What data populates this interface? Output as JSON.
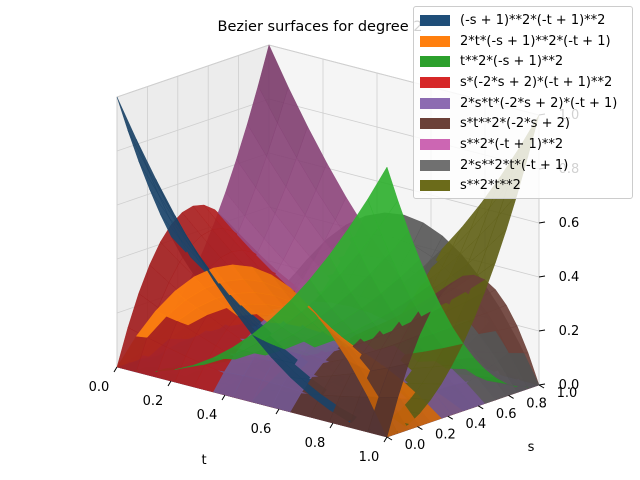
{
  "chart_data": {
    "type": "surface3d",
    "title": "Bezier surfaces for degree 2",
    "xlabel": "t",
    "ylabel": "s",
    "zlabel": "",
    "xlim": [
      0,
      1
    ],
    "ylim": [
      0,
      1
    ],
    "zlim": [
      0,
      1
    ],
    "xticks": [
      "0.0",
      "0.2",
      "0.4",
      "0.6",
      "0.8",
      "1.0"
    ],
    "yticks": [
      "0.0",
      "0.2",
      "0.4",
      "0.6",
      "0.8",
      "1.0"
    ],
    "zticks": [
      "0.0",
      "0.2",
      "0.4",
      "0.6",
      "0.8",
      "1.0"
    ],
    "grid": true,
    "legend_position": "top-right",
    "series": [
      {
        "name": "(-s + 1)**2*(-t + 1)**2",
        "color": "#1f4e79",
        "i": 0,
        "j": 0
      },
      {
        "name": "2*t*(-s + 1)**2*(-t + 1)",
        "color": "#ff7f0e",
        "i": 0,
        "j": 1
      },
      {
        "name": "t**2*(-s + 1)**2",
        "color": "#2ca02c",
        "i": 0,
        "j": 2
      },
      {
        "name": "s*(-2*s + 2)*(-t + 1)**2",
        "color": "#d62728",
        "i": 1,
        "j": 0
      },
      {
        "name": "2*s*t*(-2*s + 2)*(-t + 1)",
        "color": "#8c6bb1",
        "i": 1,
        "j": 1
      },
      {
        "name": "s*t**2*(-2*s + 2)",
        "color": "#6b4038",
        "i": 1,
        "j": 2
      },
      {
        "name": "s**2*(-t + 1)**2",
        "color": "#cc66b3",
        "i": 2,
        "j": 0
      },
      {
        "name": "2*s**2*t*(-t + 1)",
        "color": "#707070",
        "i": 2,
        "j": 1
      },
      {
        "name": "s**2*t**2",
        "color": "#6b6b1a",
        "i": 2,
        "j": 2
      }
    ]
  }
}
